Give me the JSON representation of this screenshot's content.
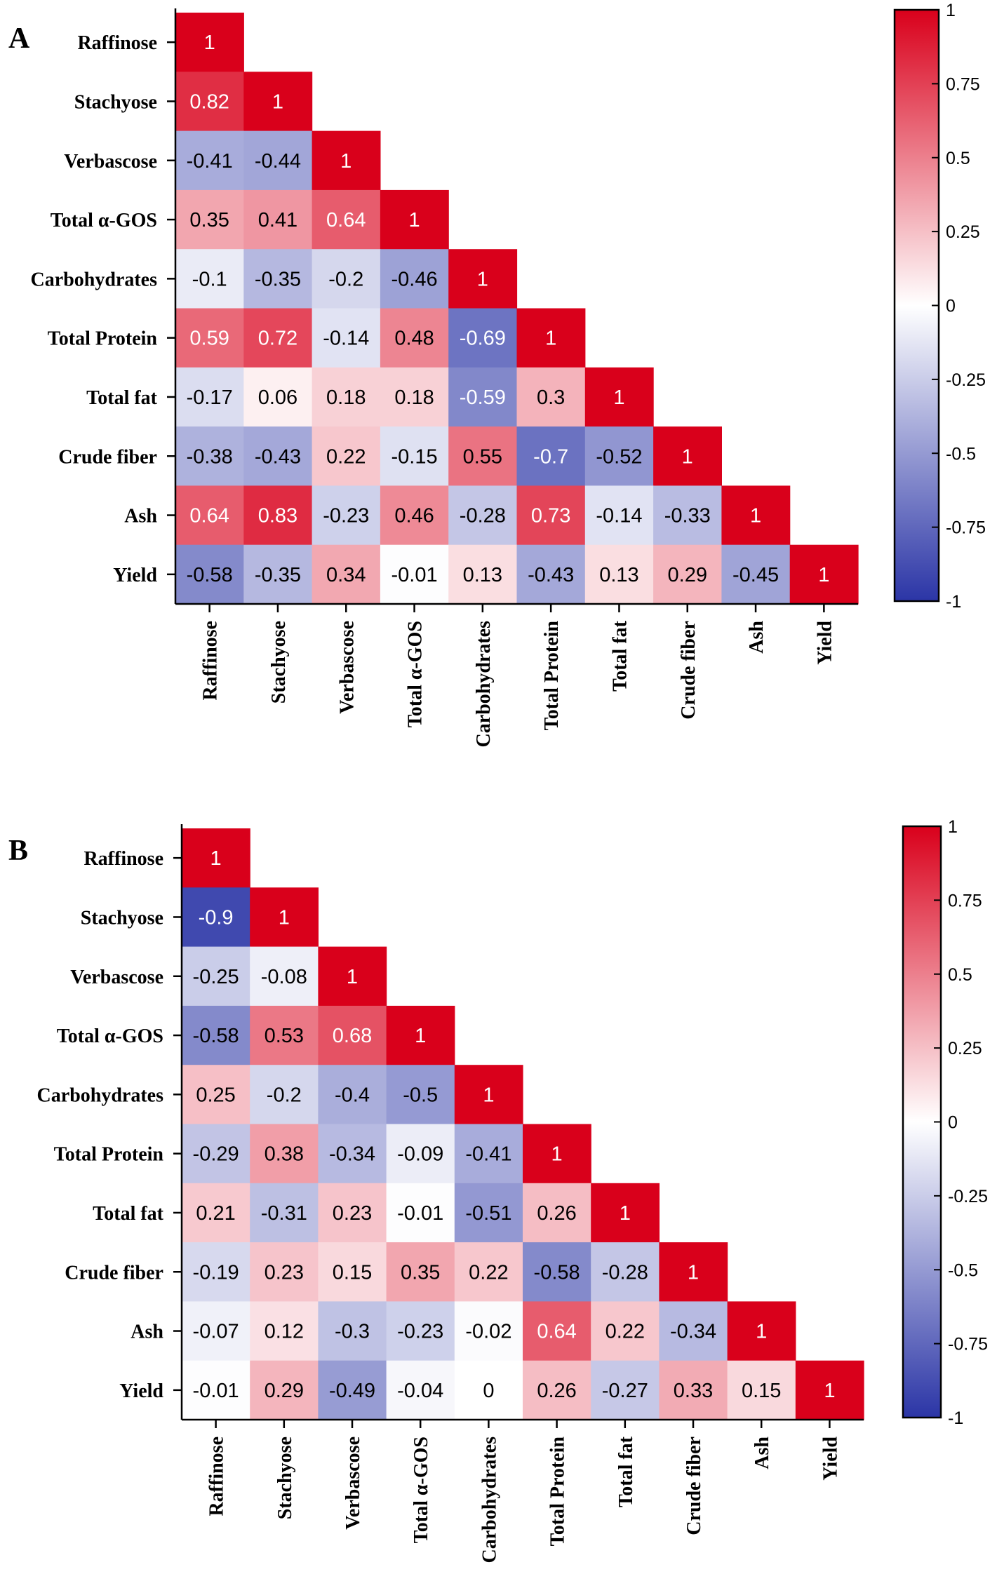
{
  "chart_data": [
    {
      "type": "heatmap",
      "panel_label": "A",
      "row_labels": [
        "Raffinose",
        "Stachyose",
        "Verbascose",
        "Total α-GOS",
        "Carbohydrates",
        "Total Protein",
        "Total fat",
        "Crude fiber",
        "Ash",
        "Yield"
      ],
      "col_labels": [
        "Raffinose",
        "Stachyose",
        "Verbascose",
        "Total α-GOS",
        "Carbohydrates",
        "Total Protein",
        "Total fat",
        "Crude fiber",
        "Ash",
        "Yield"
      ],
      "values": [
        [
          "1"
        ],
        [
          "0.82",
          "1"
        ],
        [
          "-0.41",
          "-0.44",
          "1"
        ],
        [
          "0.35",
          "0.41",
          "0.64",
          "1"
        ],
        [
          "-0.1",
          "-0.35",
          "-0.2",
          "-0.46",
          "1"
        ],
        [
          "0.59",
          "0.72",
          "-0.14",
          "0.48",
          "-0.69",
          "1"
        ],
        [
          "-0.17",
          "0.06",
          "0.18",
          "0.18",
          "-0.59",
          "0.3",
          "1"
        ],
        [
          "-0.38",
          "-0.43",
          "0.22",
          "-0.15",
          "0.55",
          "-0.7",
          "-0.52",
          "1"
        ],
        [
          "0.64",
          "0.83",
          "-0.23",
          "0.46",
          "-0.28",
          "0.73",
          "-0.14",
          "-0.33",
          "1"
        ],
        [
          "-0.58",
          "-0.35",
          "0.34",
          "-0.01",
          "0.13",
          "-0.43",
          "0.13",
          "0.29",
          "-0.45",
          "1"
        ]
      ],
      "colorbar": {
        "range": [
          -1,
          1
        ],
        "ticks": [
          "1",
          "0.75",
          "0.5",
          "0.25",
          "0",
          "-0.25",
          "-0.5",
          "-0.75",
          "-1"
        ],
        "tick_values": [
          1,
          0.75,
          0.5,
          0.25,
          0,
          -0.25,
          -0.5,
          -0.75,
          -1
        ],
        "low_color": "#2b35a6",
        "mid_color": "#ffffff",
        "high_color": "#d9001b"
      }
    },
    {
      "type": "heatmap",
      "panel_label": "B",
      "row_labels": [
        "Raffinose",
        "Stachyose",
        "Verbascose",
        "Total α-GOS",
        "Carbohydrates",
        "Total Protein",
        "Total fat",
        "Crude fiber",
        "Ash",
        "Yield"
      ],
      "col_labels": [
        "Raffinose",
        "Stachyose",
        "Verbascose",
        "Total α-GOS",
        "Carbohydrates",
        "Total Protein",
        "Total fat",
        "Crude fiber",
        "Ash",
        "Yield"
      ],
      "values": [
        [
          "1"
        ],
        [
          "-0.9",
          "1"
        ],
        [
          "-0.25",
          "-0.08",
          "1"
        ],
        [
          "-0.58",
          "0.53",
          "0.68",
          "1"
        ],
        [
          "0.25",
          "-0.2",
          "-0.4",
          "-0.5",
          "1"
        ],
        [
          "-0.29",
          "0.38",
          "-0.34",
          "-0.09",
          "-0.41",
          "1"
        ],
        [
          "0.21",
          "-0.31",
          "0.23",
          "-0.01",
          "-0.51",
          "0.26",
          "1"
        ],
        [
          "-0.19",
          "0.23",
          "0.15",
          "0.35",
          "0.22",
          "-0.58",
          "-0.28",
          "1"
        ],
        [
          "-0.07",
          "0.12",
          "-0.3",
          "-0.23",
          "-0.02",
          "0.64",
          "0.22",
          "-0.34",
          "1"
        ],
        [
          "-0.01",
          "0.29",
          "-0.49",
          "-0.04",
          "0",
          "0.26",
          "-0.27",
          "0.33",
          "0.15",
          "1"
        ]
      ],
      "colorbar": {
        "range": [
          -1,
          1
        ],
        "ticks": [
          "1",
          "0.75",
          "0.5",
          "0.25",
          "0",
          "-0.25",
          "-0.5",
          "-0.75",
          "-1"
        ],
        "tick_values": [
          1,
          0.75,
          0.5,
          0.25,
          0,
          -0.25,
          -0.5,
          -0.75,
          -1
        ],
        "low_color": "#2b35a6",
        "mid_color": "#ffffff",
        "high_color": "#d9001b"
      }
    }
  ]
}
